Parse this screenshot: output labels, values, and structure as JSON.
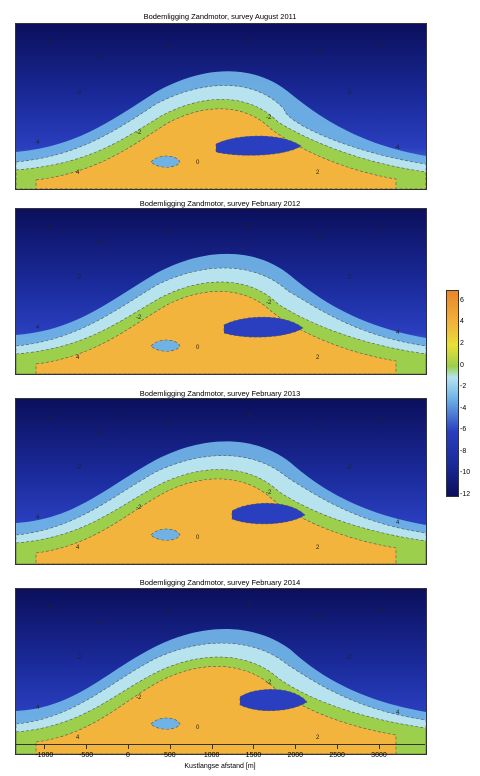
{
  "chart_data": {
    "type": "heatmap",
    "panels": [
      {
        "title": "Bodemligging Zandmotor, survey  August 2011",
        "survey": "August 2011"
      },
      {
        "title": "Bodemligging Zandmotor, survey  February 2012",
        "survey": "February 2012"
      },
      {
        "title": "Bodemligging Zandmotor, survey  February 2013",
        "survey": "February 2013"
      },
      {
        "title": "Bodemligging Zandmotor, survey  February 2014",
        "survey": "February 2014"
      }
    ],
    "xlabel": "Kustlangse afstand [m]",
    "xticks": [
      -1000,
      -500,
      0,
      500,
      1000,
      1500,
      2000,
      2500,
      3000
    ],
    "xlim": [
      -1350,
      3550
    ],
    "colorbar": {
      "ticks": [
        6,
        4,
        2,
        0,
        -2,
        -4,
        -6,
        -8,
        -10,
        -12
      ],
      "range": [
        -12,
        7
      ]
    },
    "contour_labels": [
      "-4",
      "-2",
      "0",
      "2",
      "4"
    ]
  },
  "colors": {
    "deep": "#0b0f5c",
    "mid_blue": "#2a3fbf",
    "light_blue": "#6fb2e6",
    "cyan": "#b7e3ee",
    "green": "#9ccf4c",
    "yellow": "#e9df3a",
    "orange": "#f2b43c",
    "dark_orange": "#e8862a"
  }
}
